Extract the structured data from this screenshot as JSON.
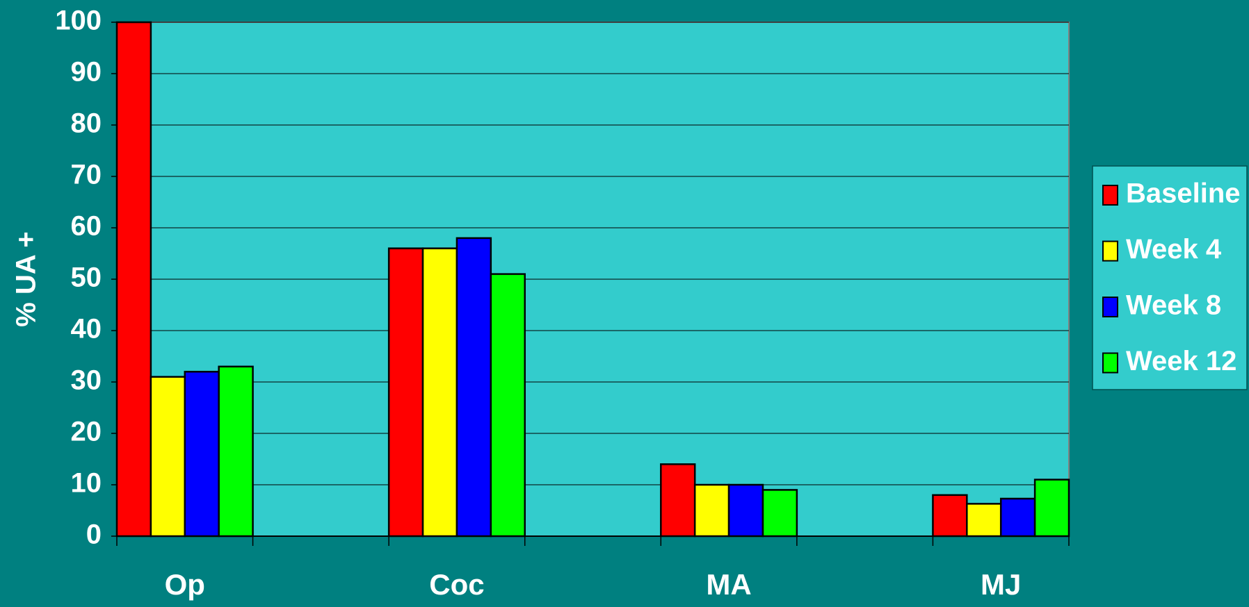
{
  "chart_data": {
    "type": "bar",
    "categories": [
      "Op",
      "Coc",
      "MA",
      "MJ"
    ],
    "series": [
      {
        "name": "Baseline",
        "color": "#ff0000",
        "values": [
          100,
          56,
          14,
          8
        ]
      },
      {
        "name": "Week 4",
        "color": "#ffff00",
        "values": [
          31,
          56,
          10,
          6.3
        ]
      },
      {
        "name": "Week 8",
        "color": "#0000ff",
        "values": [
          32,
          58,
          10,
          7.3
        ]
      },
      {
        "name": "Week 12",
        "color": "#00ff00",
        "values": [
          33,
          51,
          9,
          11
        ]
      }
    ],
    "y_label": "% UA +",
    "ylim": [
      0,
      100
    ],
    "yticks": [
      0,
      10,
      20,
      30,
      40,
      50,
      60,
      70,
      80,
      90,
      100
    ],
    "grid": true,
    "legend": "right"
  }
}
